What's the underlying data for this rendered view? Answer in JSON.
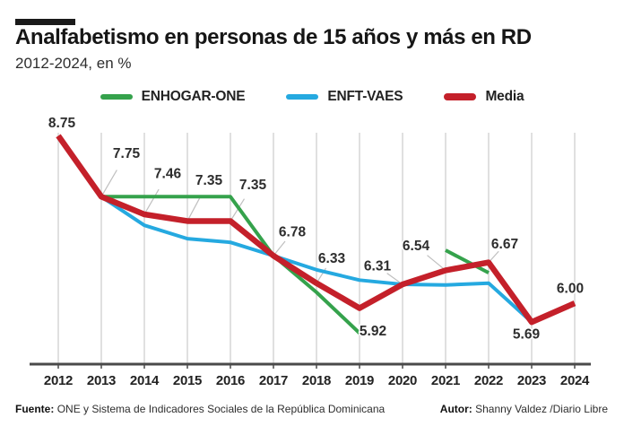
{
  "chart_data": {
    "type": "line",
    "title": "Analfabetismo en personas de 15 años y más en RD",
    "subtitle": "2012-2024, en %",
    "x": [
      "2012",
      "2013",
      "2014",
      "2015",
      "2016",
      "2017",
      "2018",
      "2019",
      "2020",
      "2021",
      "2022",
      "2023",
      "2024"
    ],
    "series": [
      {
        "name": "ENHOGAR-ONE",
        "color": "#35a24c",
        "stroke_width": 4,
        "values": [
          null,
          7.75,
          7.75,
          7.75,
          7.75,
          6.78,
          6.18,
          5.51,
          null,
          6.87,
          6.5,
          null,
          null
        ]
      },
      {
        "name": "ENFT-VAES",
        "color": "#25a9e0",
        "stroke_width": 4,
        "values": [
          null,
          7.75,
          7.28,
          7.06,
          7.0,
          6.78,
          6.55,
          6.38,
          6.31,
          6.3,
          6.33,
          5.69,
          null
        ]
      },
      {
        "name": "Media",
        "color": "#c4202a",
        "stroke_width": 6.5,
        "values": [
          8.75,
          7.75,
          7.46,
          7.35,
          7.35,
          6.78,
          6.33,
          5.92,
          6.31,
          6.54,
          6.67,
          5.69,
          6.0
        ]
      }
    ],
    "data_labels": {
      "series": "Media",
      "values": [
        "8.75",
        "7.75",
        "7.46",
        "7.35",
        "7.35",
        "6.78",
        "6.33",
        "5.92",
        "6.31",
        "6.54",
        "6.67",
        "5.69",
        "6.00"
      ]
    },
    "ylim": [
      5.0,
      8.8
    ],
    "grid": "vertical-only",
    "legend_position": "top",
    "axis_color": "#4a4a4a",
    "gridline_color": "#d6d6d6",
    "leader_color": "#bfbfbf",
    "data_label_color": "#2d2d2d",
    "tick_label_color": "#222222"
  },
  "footer": {
    "source_label": "Fuente:",
    "source_text": "ONE y Sistema de Indicadores Sociales de la República Dominicana",
    "author_label": "Autor:",
    "author_text": "Shanny Valdez /Diario Libre"
  }
}
